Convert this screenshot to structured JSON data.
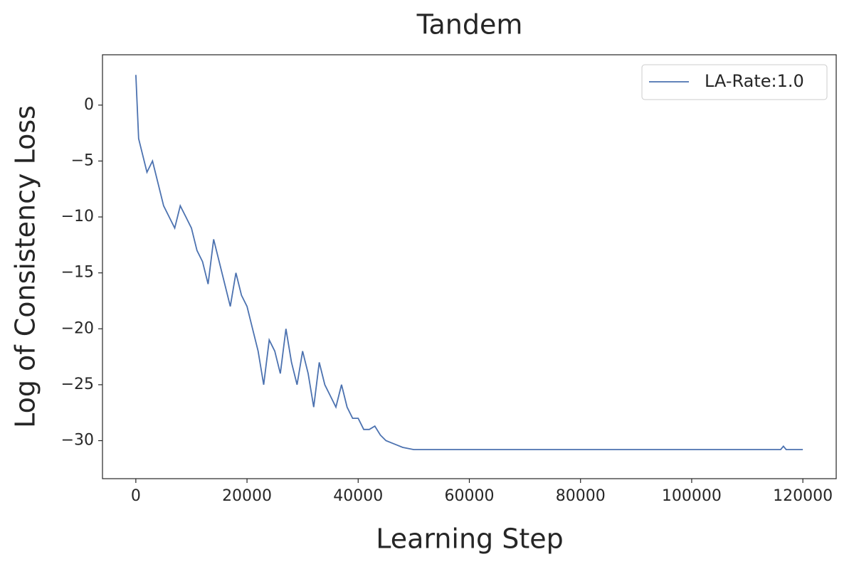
{
  "chart_data": {
    "type": "line",
    "title": "Tandem",
    "xlabel": "Learning Step",
    "ylabel": "Log of Consistency Loss",
    "x": [
      0,
      500,
      1000,
      2000,
      3000,
      4000,
      5000,
      6000,
      7000,
      8000,
      9000,
      10000,
      11000,
      12000,
      13000,
      14000,
      15000,
      16000,
      17000,
      18000,
      19000,
      20000,
      21000,
      22000,
      23000,
      24000,
      25000,
      26000,
      27000,
      28000,
      29000,
      30000,
      31000,
      32000,
      33000,
      34000,
      35000,
      36000,
      37000,
      38000,
      39000,
      40000,
      41000,
      42000,
      43000,
      44000,
      45000,
      46000,
      47000,
      48000,
      50000,
      52000,
      55000,
      60000,
      70000,
      80000,
      90000,
      100000,
      110000,
      116000,
      116500,
      117000,
      120000
    ],
    "series": [
      {
        "name": "LA-Rate:1.0",
        "color": "#4c72b0",
        "values": [
          2.7,
          -3,
          -4,
          -6,
          -5,
          -7,
          -9,
          -10,
          -11,
          -9,
          -10,
          -11,
          -13,
          -14,
          -16,
          -12,
          -14,
          -16,
          -18,
          -15,
          -17,
          -18,
          -20,
          -22,
          -25,
          -21,
          -22,
          -24,
          -20,
          -23,
          -25,
          -22,
          -24,
          -27,
          -23,
          -25,
          -26,
          -27,
          -25,
          -27,
          -28,
          -28,
          -29,
          -29,
          -28.7,
          -29.5,
          -30,
          -30.2,
          -30.4,
          -30.6,
          -30.8,
          -30.8,
          -30.8,
          -30.8,
          -30.8,
          -30.8,
          -30.8,
          -30.8,
          -30.8,
          -30.8,
          -30.5,
          -30.8,
          -30.8
        ]
      }
    ],
    "xlim": [
      -6000,
      126000
    ],
    "ylim": [
      -33.4,
      4.5
    ],
    "xticks": [
      0,
      20000,
      40000,
      60000,
      80000,
      100000,
      120000
    ],
    "yticks": [
      0,
      {
        "value": -5,
        "label": "−5"
      },
      {
        "value": -10,
        "label": "−10"
      },
      {
        "value": -15,
        "label": "−15"
      },
      {
        "value": -20,
        "label": "−20"
      },
      {
        "value": -25,
        "label": "−25"
      },
      {
        "value": -30,
        "label": "−30"
      }
    ],
    "legend": "upper right"
  }
}
